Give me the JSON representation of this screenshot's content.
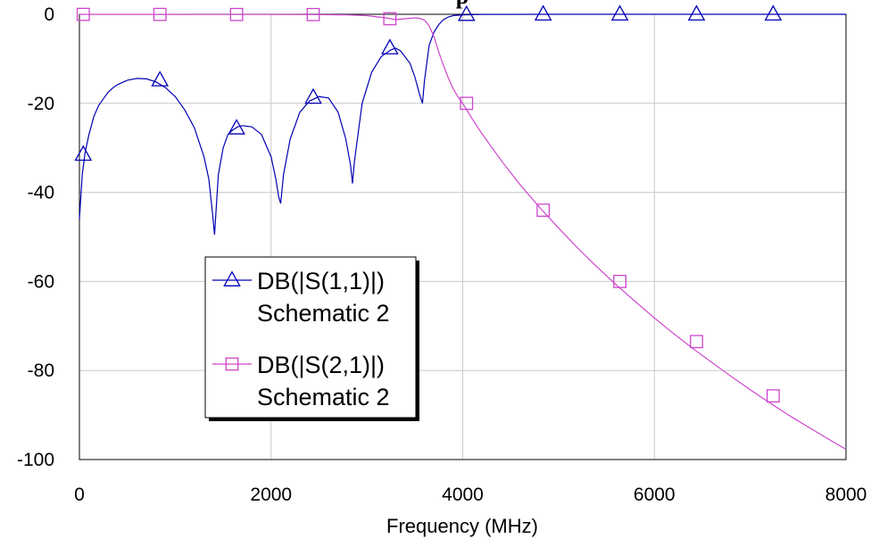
{
  "chart_data": {
    "type": "line",
    "title": "p",
    "xlabel": "Frequency (MHz)",
    "ylabel": "",
    "xlim": [
      0,
      8000
    ],
    "ylim": [
      -100,
      0
    ],
    "x_ticks": [
      0,
      2000,
      4000,
      6000,
      8000
    ],
    "y_ticks": [
      0,
      -20,
      -40,
      -60,
      -80,
      -100
    ],
    "x_tick_labels": [
      "0",
      "2000",
      "4000",
      "6000",
      "8000"
    ],
    "y_tick_labels": [
      "0",
      "-20",
      "-40",
      "-60",
      "-80",
      "-100"
    ],
    "grid": true,
    "legend_position": "lower-left",
    "series": [
      {
        "name": "DB(|S(1,1)|)",
        "sub_label": "Schematic 2",
        "color": "#0000b4",
        "marker": "triangle",
        "x": [
          0,
          30,
          60,
          100,
          150,
          200,
          250,
          300,
          350,
          400,
          500,
          600,
          700,
          800,
          900,
          1000,
          1100,
          1200,
          1300,
          1350,
          1390,
          1410,
          1450,
          1500,
          1550,
          1600,
          1650,
          1700,
          1800,
          1900,
          2000,
          2050,
          2080,
          2100,
          2130,
          2200,
          2300,
          2400,
          2500,
          2600,
          2700,
          2780,
          2830,
          2850,
          2870,
          2950,
          3050,
          3150,
          3250,
          3300,
          3350,
          3450,
          3500,
          3550,
          3580,
          3600,
          3650,
          3700,
          3750,
          3800,
          3850,
          3900,
          4000,
          4200,
          4400,
          5000,
          6000,
          7000,
          8000
        ],
        "y": [
          -46,
          -36,
          -31,
          -27,
          -23,
          -20.5,
          -19,
          -17.5,
          -16.5,
          -15.8,
          -14.8,
          -14.4,
          -14.5,
          -15.2,
          -16.5,
          -18.5,
          -21.5,
          -25.5,
          -32,
          -37,
          -45,
          -49.5,
          -36,
          -30,
          -27,
          -26,
          -25.3,
          -25,
          -25.3,
          -27,
          -32,
          -37,
          -41,
          -42.5,
          -36,
          -28,
          -22,
          -19.5,
          -18.5,
          -18.8,
          -22,
          -28,
          -34,
          -38,
          -33,
          -20,
          -13,
          -9.5,
          -8,
          -7.6,
          -8.2,
          -11,
          -14,
          -18,
          -20,
          -15,
          -7,
          -4,
          -2.3,
          -1.2,
          -0.6,
          -0.3,
          -0.15,
          -0.05,
          -0.02,
          -0.01,
          -0.01,
          -0.01,
          -0.01
        ],
        "markers_x": [
          40,
          840,
          1640,
          2440,
          3240,
          4040,
          4840,
          5640,
          6440,
          7240
        ],
        "markers_y": [
          -31.5,
          -14.8,
          -25.6,
          -18.7,
          -7.6,
          -0.1,
          -0.01,
          -0.01,
          -0.01,
          -0.01
        ]
      },
      {
        "name": "DB(|S(2,1)|)",
        "sub_label": "Schematic 2",
        "color": "#cc44cc",
        "marker": "square",
        "x": [
          0,
          200,
          400,
          800,
          1200,
          1600,
          2000,
          2400,
          2800,
          3000,
          3200,
          3300,
          3400,
          3500,
          3550,
          3600,
          3650,
          3700,
          3750,
          3800,
          3850,
          3900,
          3950,
          4000,
          4100,
          4200,
          4400,
          4600,
          4800,
          5000,
          5200,
          5400,
          5600,
          5800,
          6000,
          6200,
          6400,
          6600,
          6800,
          7000,
          7200,
          7400,
          7600,
          7800,
          8000
        ],
        "y": [
          -0.02,
          -0.02,
          -0.02,
          -0.03,
          -0.05,
          -0.05,
          -0.05,
          -0.06,
          -0.15,
          -0.3,
          -0.8,
          -1.2,
          -1.0,
          -0.8,
          -0.9,
          -1.3,
          -2.6,
          -5,
          -8.5,
          -11.5,
          -14.3,
          -16.7,
          -18.5,
          -20,
          -23.5,
          -26.8,
          -32.8,
          -38.3,
          -43.3,
          -48,
          -52.5,
          -56.7,
          -60.7,
          -64.5,
          -68.2,
          -71.7,
          -75,
          -78.2,
          -81.3,
          -84.3,
          -87.2,
          -90,
          -92.6,
          -95.2,
          -97.7
        ],
        "markers_x": [
          40,
          840,
          1640,
          2440,
          3240,
          4040,
          4840,
          5640,
          6440,
          7240
        ],
        "markers_y": [
          -0.02,
          -0.03,
          -0.05,
          -0.06,
          -1.0,
          -20,
          -44,
          -60,
          -73.5,
          -85.7
        ]
      }
    ]
  }
}
